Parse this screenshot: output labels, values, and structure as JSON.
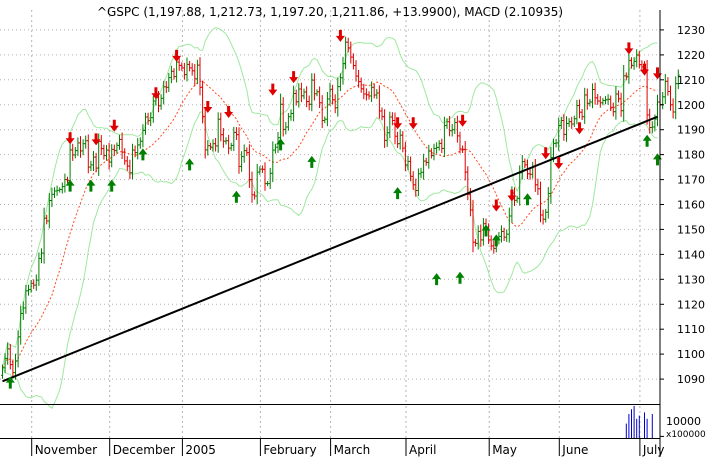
{
  "chart_data": {
    "type": "candlestick",
    "title": "^GSPC (1,197.88, 1,212.73, 1,197.20, 1,211.86, +13.9900), MACD (2.10935)",
    "ohlc_header": {
      "symbol": "^GSPC",
      "open": 1197.88,
      "high": 1212.73,
      "low": 1197.2,
      "close": 1211.86,
      "change": 13.99,
      "macd": 2.10935
    },
    "ylim": [
      1080,
      1238
    ],
    "yticks": [
      1090,
      1100,
      1110,
      1120,
      1130,
      1140,
      1150,
      1160,
      1170,
      1180,
      1190,
      1200,
      1210,
      1220,
      1230
    ],
    "x_tick_labels": [
      "November",
      "December",
      "2005",
      "February",
      "March",
      "April",
      "May",
      "June",
      "July"
    ],
    "x_label_bars": [
      12,
      42,
      70,
      100,
      127,
      156,
      188,
      215,
      246
    ],
    "month_boundary_bars": [
      12,
      42,
      70,
      100,
      127,
      156,
      188,
      215,
      246
    ],
    "n_bars": 253,
    "close": [
      1094.5,
      1098.3,
      1102.1,
      1095.8,
      1092.6,
      1097.3,
      1106.9,
      1116.3,
      1118.5,
      1125.4,
      1125.9,
      1128.4,
      1127.7,
      1129.7,
      1138.4,
      1140.5,
      1154.5,
      1153.4,
      1161.6,
      1164.1,
      1165.4,
      1165.7,
      1166.0,
      1167.2,
      1170.0,
      1169.6,
      1181.9,
      1179.9,
      1181.6,
      1184.7,
      1181.5,
      1184.4,
      1185.6,
      1175.0,
      1175.9,
      1179.0,
      1174.6,
      1185.3,
      1182.4,
      1179.6,
      1181.8,
      1177.0,
      1182.1,
      1181.6,
      1183.7,
      1186.1,
      1181.0,
      1177.5,
      1175.4,
      1172.7,
      1181.8,
      1180.8,
      1183.9,
      1185.4,
      1189.7,
      1195.1,
      1193.6,
      1194.8,
      1201.5,
      1202.9,
      1199.6,
      1202.6,
      1207.2,
      1207.0,
      1210.9,
      1213.4,
      1211.3,
      1217.1,
      1215.8,
      1214.8,
      1212.1,
      1216.2,
      1214.8,
      1213.6,
      1210.4,
      1215.9,
      1207.0,
      1195.2,
      1181.9,
      1183.6,
      1183.0,
      1184.4,
      1183.5,
      1194.2,
      1188.0,
      1185.4,
      1185.6,
      1182.6,
      1183.7,
      1188.9,
      1188.0,
      1175.3,
      1179.2,
      1181.6,
      1180.8,
      1170.0,
      1163.9,
      1163.4,
      1173.0,
      1174.2,
      1174.1,
      1168.4,
      1168.4,
      1172.5,
      1181.8,
      1183.0,
      1186.8,
      1200.2,
      1190.1,
      1191.1,
      1195.2,
      1196.5,
      1204.5,
      1201.2,
      1206.3,
      1203.6,
      1205.1,
      1201.3,
      1200.2,
      1209.9,
      1204.4,
      1205.2,
      1200.8,
      1193.7,
      1194.2,
      1202.3,
      1206.2,
      1202.0,
      1198.8,
      1207.3,
      1210.8,
      1216.5,
      1225.1,
      1222.8,
      1219.1,
      1215.7,
      1211.5,
      1209.3,
      1206.4,
      1204.3,
      1204.0,
      1203.5,
      1207.0,
      1203.9,
      1204.7,
      1197.5,
      1195.2,
      1185.7,
      1188.8,
      1195.1,
      1193.7,
      1187.4,
      1184.4,
      1187.8,
      1182.6,
      1175.9,
      1177.3,
      1171.3,
      1167.9,
      1165.6,
      1172.3,
      1172.9,
      1177.4,
      1176.9,
      1181.4,
      1179.6,
      1182.5,
      1182.9,
      1184.5,
      1182.5,
      1191.7,
      1193.2,
      1189.6,
      1190.0,
      1192.9,
      1187.5,
      1182.2,
      1182.1,
      1173.0,
      1164.1,
      1157.8,
      1144.9,
      1144.4,
      1149.2,
      1145.8,
      1152.3,
      1150.8,
      1145.8,
      1143.4,
      1142.4,
      1145.8,
      1147.2,
      1149.2,
      1146.9,
      1148.1,
      1155.4,
      1164.6,
      1161.7,
      1162.5,
      1172.7,
      1177.2,
      1175.9,
      1172.3,
      1172.1,
      1175.4,
      1167.9,
      1166.3,
      1155.8,
      1154.1,
      1156.9,
      1164.4,
      1178.9,
      1184.5,
      1184.7,
      1191.7,
      1193.7,
      1188.1,
      1192.5,
      1193.2,
      1192.3,
      1194.4,
      1199.7,
      1197.0,
      1195.2,
      1203.9,
      1200.6,
      1201.1,
      1206.1,
      1202.8,
      1201.5,
      1200.8,
      1201.7,
      1202.0,
      1202.2,
      1199.0,
      1197.2,
      1204.3,
      1202.4,
      1197.6,
      1211.6,
      1211.2,
      1217.8,
      1215.7,
      1217.4,
      1219.9,
      1216.1,
      1215.2,
      1214.1,
      1195.9,
      1190.9,
      1191.1,
      1194.3,
      1201.1,
      1200.1,
      1203.2,
      1209.4,
      1205.3,
      1200.0,
      1197.1,
      1208.5,
      1211.9
    ],
    "trendline": {
      "start": {
        "bar": 0,
        "value": 1089.1
      },
      "end": {
        "bar": 252,
        "value": 1195.2
      }
    },
    "sell_arrows": [
      {
        "bar": 26,
        "value": 1189.0
      },
      {
        "bar": 36,
        "value": 1188.5
      },
      {
        "bar": 43,
        "value": 1194.0
      },
      {
        "bar": 59,
        "value": 1207.0
      },
      {
        "bar": 67,
        "value": 1222.0
      },
      {
        "bar": 79,
        "value": 1201.5
      },
      {
        "bar": 87,
        "value": 1199.5
      },
      {
        "bar": 104,
        "value": 1208.5
      },
      {
        "bar": 112,
        "value": 1213.5
      },
      {
        "bar": 130,
        "value": 1230.0
      },
      {
        "bar": 152,
        "value": 1195.0
      },
      {
        "bar": 158,
        "value": 1195.0
      },
      {
        "bar": 177,
        "value": 1196.0
      },
      {
        "bar": 190,
        "value": 1162.0
      },
      {
        "bar": 196,
        "value": 1166.0
      },
      {
        "bar": 209,
        "value": 1183.0
      },
      {
        "bar": 214,
        "value": 1179.0
      },
      {
        "bar": 222,
        "value": 1193.0
      },
      {
        "bar": 241,
        "value": 1225.0
      },
      {
        "bar": 247,
        "value": 1216.5
      },
      {
        "bar": 252,
        "value": 1215.0
      }
    ],
    "buy_arrows": [
      {
        "bar": 3,
        "value": 1091.0
      },
      {
        "bar": 26,
        "value": 1170.0
      },
      {
        "bar": 34,
        "value": 1170.0
      },
      {
        "bar": 42,
        "value": 1170.0
      },
      {
        "bar": 54,
        "value": 1182.5
      },
      {
        "bar": 72,
        "value": 1178.5
      },
      {
        "bar": 90,
        "value": 1165.5
      },
      {
        "bar": 107,
        "value": 1186.5
      },
      {
        "bar": 119,
        "value": 1179.5
      },
      {
        "bar": 152,
        "value": 1167.0
      },
      {
        "bar": 167,
        "value": 1132.5
      },
      {
        "bar": 176,
        "value": 1133.0
      },
      {
        "bar": 186,
        "value": 1152.0
      },
      {
        "bar": 190,
        "value": 1148.0
      },
      {
        "bar": 202,
        "value": 1164.5
      },
      {
        "bar": 248,
        "value": 1188.0
      },
      {
        "bar": 252,
        "value": 1180.5
      }
    ],
    "volume_panel": {
      "label_10000": "10000",
      "label_x100000": "x100000",
      "ylim": [
        0,
        200000
      ],
      "ticks": [
        10000
      ],
      "bars": [
        {
          "bar": 240,
          "value": 90000
        },
        {
          "bar": 241,
          "value": 150000
        },
        {
          "bar": 242,
          "value": 180000
        },
        {
          "bar": 243,
          "value": 200000
        },
        {
          "bar": 244,
          "value": 120000
        },
        {
          "bar": 245,
          "value": 140000
        },
        {
          "bar": 247,
          "value": 160000
        },
        {
          "bar": 248,
          "value": 120000
        },
        {
          "bar": 250,
          "value": 150000
        }
      ]
    },
    "grid": true,
    "colors": {
      "up": "#007f00",
      "down": "#e00000",
      "trendline": "#000000",
      "bollinger": "#9fe89f",
      "moving_average": "#ff4a1c",
      "volume": "#0000c8",
      "grid": "#b4b4b4"
    }
  }
}
